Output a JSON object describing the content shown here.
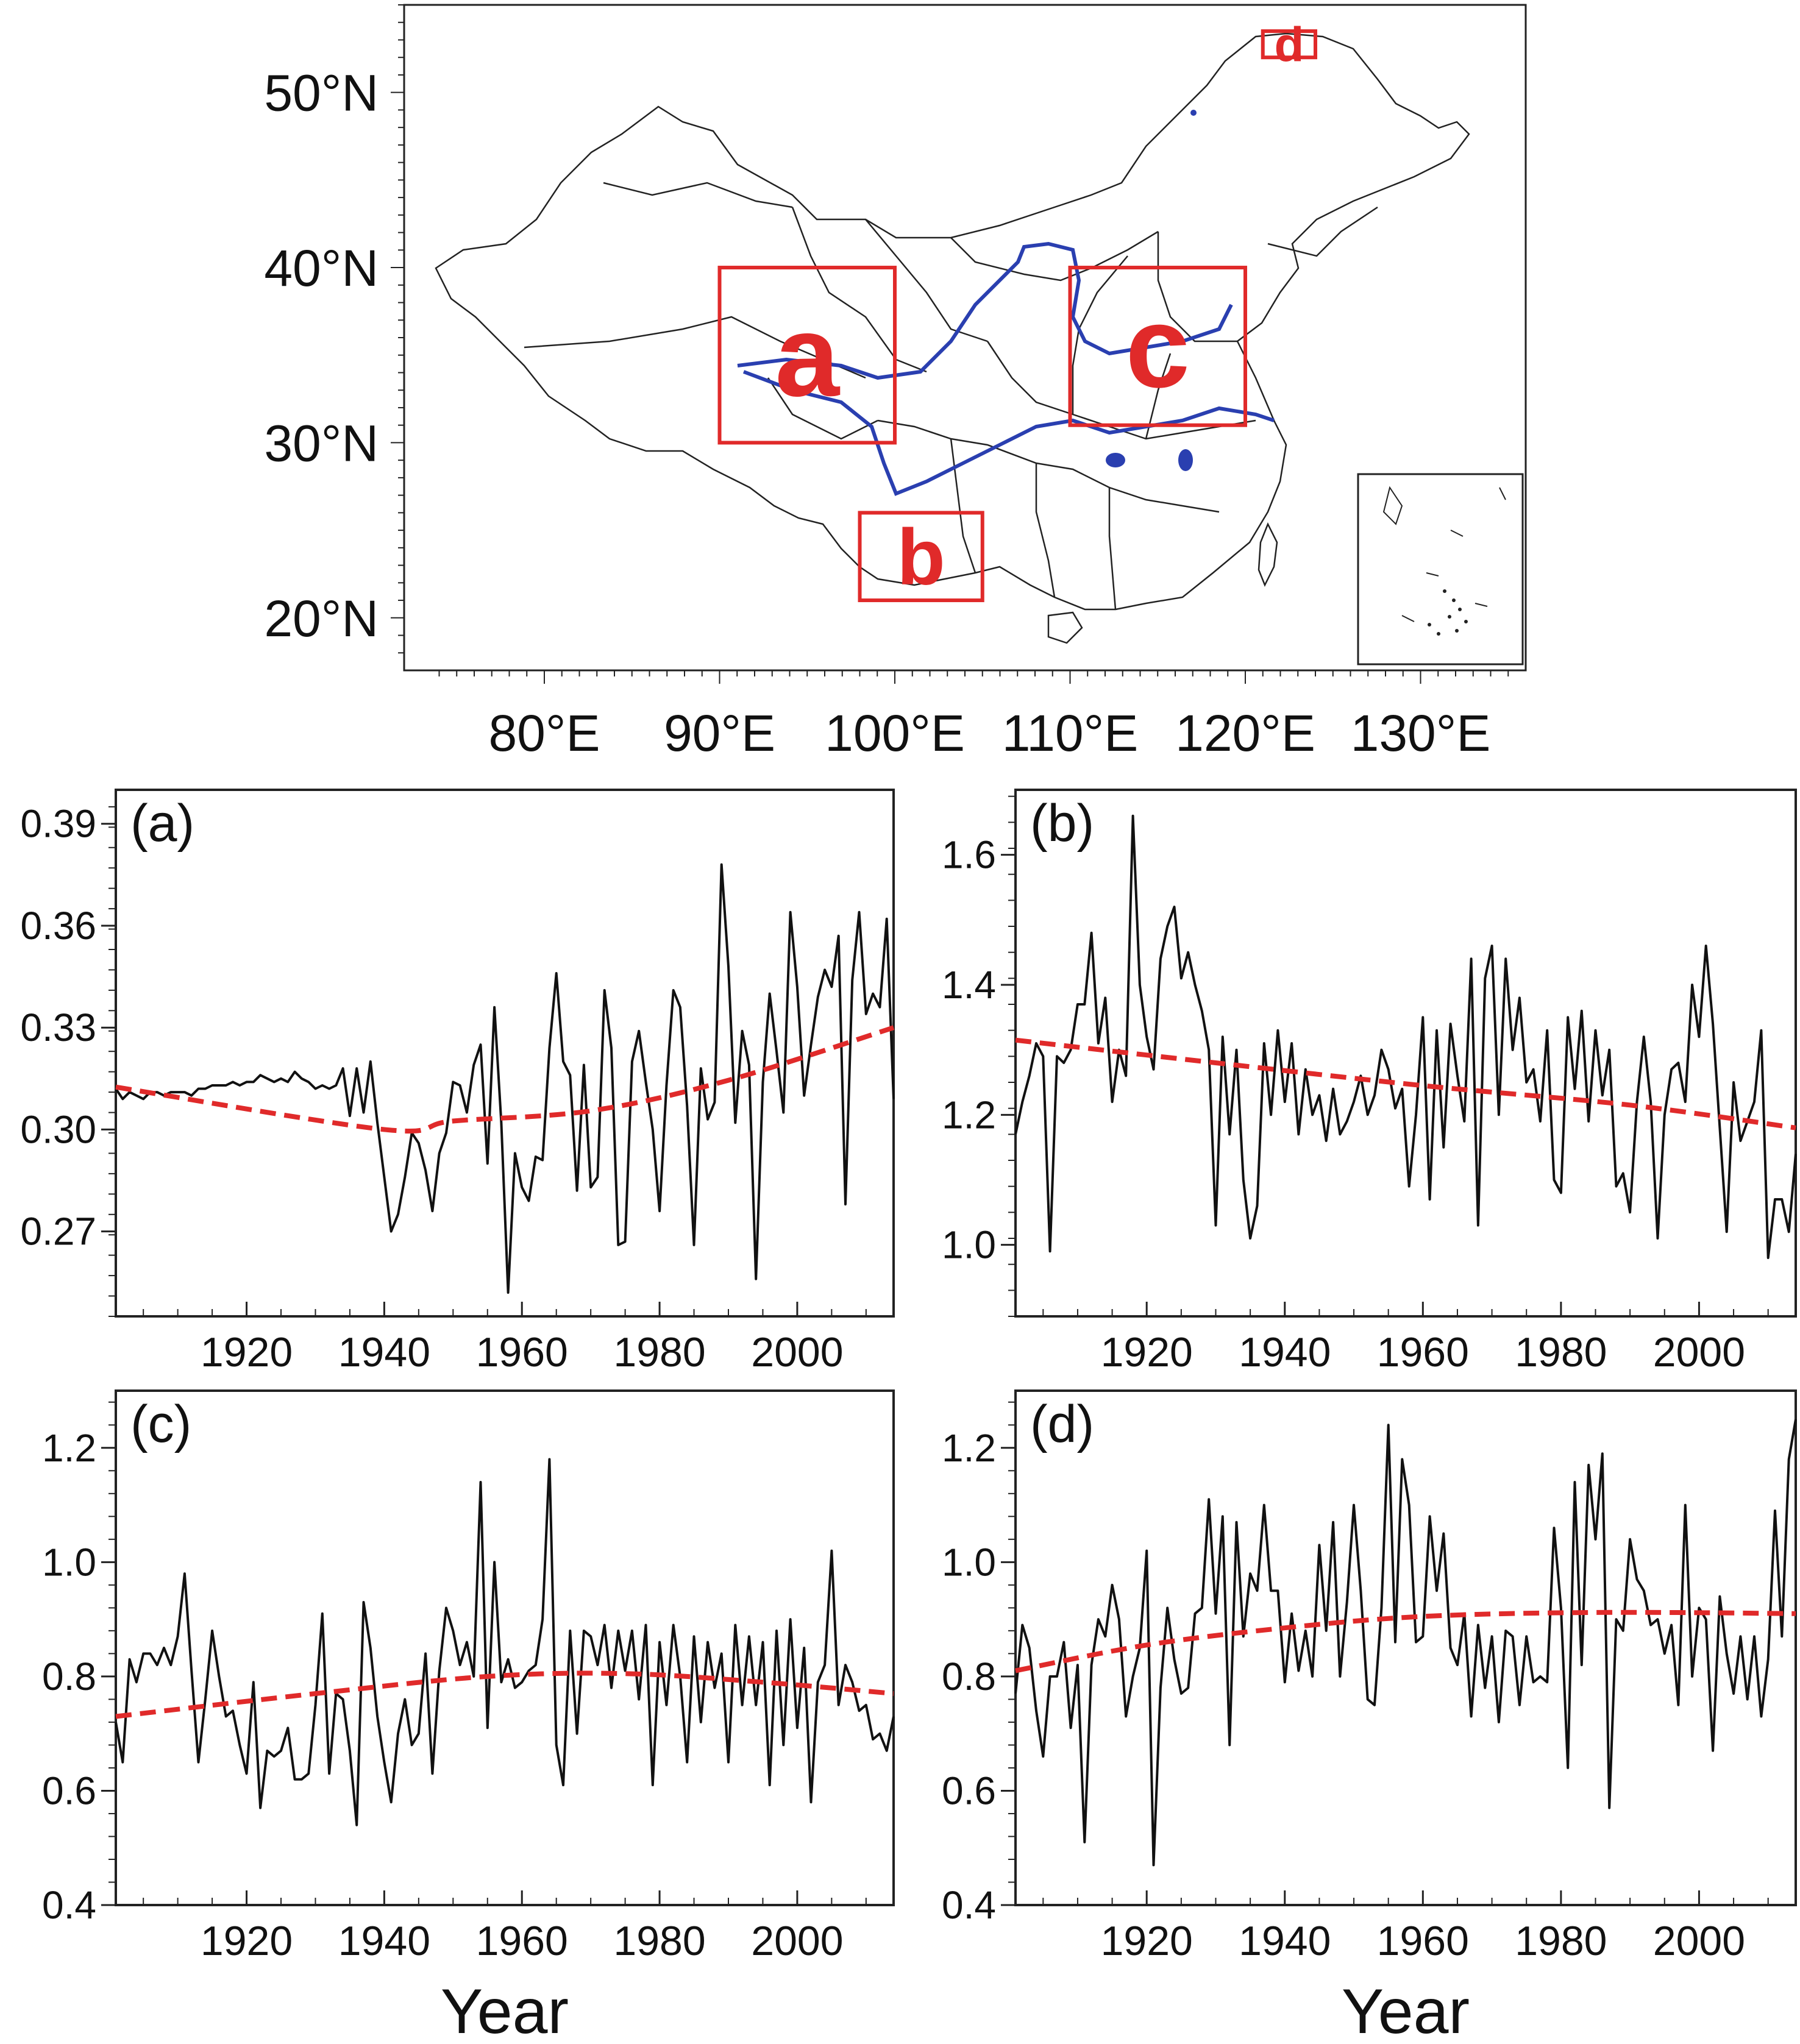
{
  "map": {
    "lat_ticks": [
      "50°N",
      "40°N",
      "30°N",
      "20°N"
    ],
    "lat_values": [
      50,
      40,
      30,
      20
    ],
    "lon_ticks": [
      "80°E",
      "90°E",
      "100°E",
      "110°E",
      "120°E",
      "130°E"
    ],
    "lon_values": [
      80,
      90,
      100,
      110,
      120,
      130
    ],
    "lon_range": [
      72,
      136
    ],
    "lat_range": [
      17,
      55
    ],
    "regions": [
      {
        "label": "a",
        "lon": [
          90,
          100
        ],
        "lat": [
          30,
          40
        ]
      },
      {
        "label": "b",
        "lon": [
          98,
          105
        ],
        "lat": [
          21,
          26
        ]
      },
      {
        "label": "c",
        "lon": [
          110,
          120
        ],
        "lat": [
          31,
          40
        ]
      },
      {
        "label": "d",
        "lon": [
          121,
          124
        ],
        "lat": [
          52,
          53.5
        ]
      }
    ],
    "colors": {
      "frame": "#222222",
      "boundary": "#222222",
      "river": "#2a3fb0",
      "region": "#e02a2a"
    }
  },
  "chart_data": [
    {
      "type": "line",
      "panel": "(a)",
      "xlabel": "",
      "xlim": [
        1901,
        2014
      ],
      "ylim": [
        0.245,
        0.4
      ],
      "yticks": [
        0.27,
        0.3,
        0.33,
        0.36,
        0.39
      ],
      "ytick_labels": [
        "0.27",
        "0.30",
        "0.33",
        "0.36",
        "0.39"
      ],
      "xticks": [
        1920,
        1940,
        1960,
        1980,
        2000
      ],
      "xtick_labels": [
        "1920",
        "1940",
        "1960",
        "1980",
        "2000"
      ],
      "x_start": 1901,
      "values": [
        0.312,
        0.309,
        0.311,
        0.31,
        0.309,
        0.311,
        0.311,
        0.31,
        0.311,
        0.311,
        0.311,
        0.31,
        0.312,
        0.312,
        0.313,
        0.313,
        0.313,
        0.314,
        0.313,
        0.314,
        0.314,
        0.316,
        0.315,
        0.314,
        0.315,
        0.314,
        0.317,
        0.315,
        0.314,
        0.312,
        0.313,
        0.312,
        0.313,
        0.318,
        0.304,
        0.318,
        0.305,
        0.32,
        0.302,
        0.286,
        0.27,
        0.275,
        0.286,
        0.299,
        0.296,
        0.288,
        0.276,
        0.293,
        0.299,
        0.314,
        0.313,
        0.305,
        0.319,
        0.325,
        0.29,
        0.336,
        0.302,
        0.252,
        0.293,
        0.283,
        0.279,
        0.292,
        0.291,
        0.324,
        0.346,
        0.32,
        0.316,
        0.282,
        0.319,
        0.283,
        0.286,
        0.341,
        0.324,
        0.266,
        0.267,
        0.32,
        0.329,
        0.314,
        0.3,
        0.276,
        0.313,
        0.341,
        0.336,
        0.307,
        0.266,
        0.318,
        0.303,
        0.308,
        0.378,
        0.348,
        0.302,
        0.329,
        0.319,
        0.256,
        0.314,
        0.34,
        0.323,
        0.305,
        0.364,
        0.342,
        0.31,
        0.325,
        0.339,
        0.347,
        0.342,
        0.357,
        0.278,
        0.344,
        0.364,
        0.334,
        0.34,
        0.336,
        0.362,
        0.309
      ],
      "trend": [
        0.3125,
        0.3,
        0.3025,
        0.3055,
        0.3145,
        0.33
      ],
      "trend_x": [
        1901,
        1940,
        1950,
        1970,
        1990,
        2014
      ],
      "colors": {
        "series": "#111111",
        "trend": "#e02a2a"
      }
    },
    {
      "type": "line",
      "panel": "(b)",
      "xlabel": "",
      "xlim": [
        1901,
        2014
      ],
      "ylim": [
        0.89,
        1.7
      ],
      "yticks": [
        1.0,
        1.2,
        1.4,
        1.6
      ],
      "ytick_labels": [
        "1.0",
        "1.2",
        "1.4",
        "1.6"
      ],
      "xticks": [
        1920,
        1940,
        1960,
        1980,
        2000
      ],
      "xtick_labels": [
        "1920",
        "1940",
        "1960",
        "1980",
        "2000"
      ],
      "x_start": 1901,
      "values": [
        1.17,
        1.22,
        1.26,
        1.31,
        1.29,
        0.99,
        1.29,
        1.28,
        1.3,
        1.37,
        1.37,
        1.48,
        1.31,
        1.38,
        1.22,
        1.3,
        1.26,
        1.66,
        1.4,
        1.32,
        1.27,
        1.44,
        1.49,
        1.52,
        1.41,
        1.45,
        1.4,
        1.36,
        1.3,
        1.03,
        1.32,
        1.17,
        1.3,
        1.1,
        1.01,
        1.06,
        1.31,
        1.2,
        1.33,
        1.22,
        1.31,
        1.17,
        1.27,
        1.2,
        1.23,
        1.16,
        1.24,
        1.17,
        1.19,
        1.22,
        1.26,
        1.2,
        1.23,
        1.3,
        1.27,
        1.21,
        1.24,
        1.09,
        1.2,
        1.35,
        1.07,
        1.33,
        1.15,
        1.34,
        1.26,
        1.19,
        1.44,
        1.03,
        1.41,
        1.46,
        1.2,
        1.44,
        1.3,
        1.38,
        1.25,
        1.27,
        1.19,
        1.33,
        1.1,
        1.08,
        1.35,
        1.24,
        1.36,
        1.19,
        1.33,
        1.23,
        1.3,
        1.09,
        1.11,
        1.05,
        1.22,
        1.32,
        1.22,
        1.01,
        1.2,
        1.27,
        1.28,
        1.22,
        1.4,
        1.32,
        1.46,
        1.34,
        1.18,
        1.02,
        1.25,
        1.16,
        1.19,
        1.22,
        1.33,
        0.98,
        1.07,
        1.07,
        1.02,
        1.14
      ],
      "trend": [
        1.315,
        1.28,
        1.245,
        1.215,
        1.18
      ],
      "trend_x": [
        1901,
        1930,
        1960,
        1990,
        2014
      ],
      "colors": {
        "series": "#111111",
        "trend": "#e02a2a"
      }
    },
    {
      "type": "line",
      "panel": "(c)",
      "xlabel": "Year",
      "xlim": [
        1901,
        2014
      ],
      "ylim": [
        0.4,
        1.3
      ],
      "yticks": [
        0.4,
        0.6,
        0.8,
        1.0,
        1.2
      ],
      "ytick_labels": [
        "0.4",
        "0.6",
        "0.8",
        "1.0",
        "1.2"
      ],
      "xticks": [
        1920,
        1940,
        1960,
        1980,
        2000
      ],
      "xtick_labels": [
        "1920",
        "1940",
        "1960",
        "1980",
        "2000"
      ],
      "x_start": 1901,
      "values": [
        0.72,
        0.65,
        0.83,
        0.79,
        0.84,
        0.84,
        0.82,
        0.85,
        0.82,
        0.87,
        0.98,
        0.81,
        0.65,
        0.76,
        0.88,
        0.8,
        0.73,
        0.74,
        0.68,
        0.63,
        0.79,
        0.57,
        0.67,
        0.66,
        0.67,
        0.71,
        0.62,
        0.62,
        0.63,
        0.75,
        0.91,
        0.63,
        0.77,
        0.76,
        0.67,
        0.54,
        0.93,
        0.85,
        0.73,
        0.65,
        0.58,
        0.7,
        0.76,
        0.68,
        0.7,
        0.84,
        0.63,
        0.81,
        0.92,
        0.88,
        0.82,
        0.86,
        0.8,
        1.14,
        0.71,
        1.0,
        0.79,
        0.83,
        0.78,
        0.79,
        0.81,
        0.82,
        0.9,
        1.18,
        0.68,
        0.61,
        0.88,
        0.7,
        0.88,
        0.87,
        0.82,
        0.89,
        0.78,
        0.88,
        0.81,
        0.88,
        0.76,
        0.89,
        0.61,
        0.86,
        0.75,
        0.89,
        0.8,
        0.65,
        0.87,
        0.72,
        0.86,
        0.78,
        0.84,
        0.65,
        0.89,
        0.75,
        0.87,
        0.75,
        0.86,
        0.61,
        0.88,
        0.68,
        0.9,
        0.71,
        0.85,
        0.58,
        0.79,
        0.82,
        1.02,
        0.75,
        0.82,
        0.79,
        0.74,
        0.75,
        0.69,
        0.7,
        0.67,
        0.73
      ],
      "trend": [
        0.73,
        0.77,
        0.8,
        0.805,
        0.79,
        0.77
      ],
      "trend_x": [
        1901,
        1930,
        1955,
        1975,
        1995,
        2014
      ],
      "colors": {
        "series": "#111111",
        "trend": "#e02a2a"
      }
    },
    {
      "type": "line",
      "panel": "(d)",
      "xlabel": "Year",
      "xlim": [
        1901,
        2014
      ],
      "ylim": [
        0.4,
        1.3
      ],
      "yticks": [
        0.4,
        0.6,
        0.8,
        1.0,
        1.2
      ],
      "ytick_labels": [
        "0.4",
        "0.6",
        "0.8",
        "1.0",
        "1.2"
      ],
      "xticks": [
        1920,
        1940,
        1960,
        1980,
        2000
      ],
      "xtick_labels": [
        "1920",
        "1940",
        "1960",
        "1980",
        "2000"
      ],
      "x_start": 1901,
      "values": [
        0.77,
        0.89,
        0.85,
        0.74,
        0.66,
        0.8,
        0.8,
        0.86,
        0.71,
        0.82,
        0.51,
        0.82,
        0.9,
        0.87,
        0.96,
        0.9,
        0.73,
        0.8,
        0.85,
        1.02,
        0.47,
        0.78,
        0.92,
        0.83,
        0.77,
        0.78,
        0.91,
        0.92,
        1.11,
        0.91,
        1.08,
        0.68,
        1.07,
        0.87,
        0.98,
        0.95,
        1.1,
        0.95,
        0.95,
        0.79,
        0.91,
        0.81,
        0.88,
        0.8,
        1.03,
        0.88,
        1.07,
        0.8,
        0.93,
        1.1,
        0.95,
        0.76,
        0.75,
        0.92,
        1.24,
        0.86,
        1.18,
        1.1,
        0.86,
        0.87,
        1.08,
        0.95,
        1.05,
        0.85,
        0.82,
        0.91,
        0.73,
        0.89,
        0.78,
        0.87,
        0.72,
        0.88,
        0.87,
        0.75,
        0.87,
        0.79,
        0.8,
        0.79,
        1.06,
        0.92,
        0.64,
        1.14,
        0.82,
        1.17,
        1.04,
        1.19,
        0.57,
        0.9,
        0.88,
        1.04,
        0.97,
        0.95,
        0.89,
        0.9,
        0.84,
        0.89,
        0.75,
        1.1,
        0.8,
        0.92,
        0.9,
        0.67,
        0.94,
        0.84,
        0.77,
        0.87,
        0.76,
        0.87,
        0.73,
        0.83,
        1.09,
        0.87,
        1.18,
        1.25
      ],
      "trend": [
        0.81,
        0.855,
        0.885,
        0.905,
        0.912,
        0.91
      ],
      "trend_x": [
        1901,
        1920,
        1940,
        1960,
        1985,
        2014
      ],
      "colors": {
        "series": "#111111",
        "trend": "#e02a2a"
      }
    }
  ]
}
